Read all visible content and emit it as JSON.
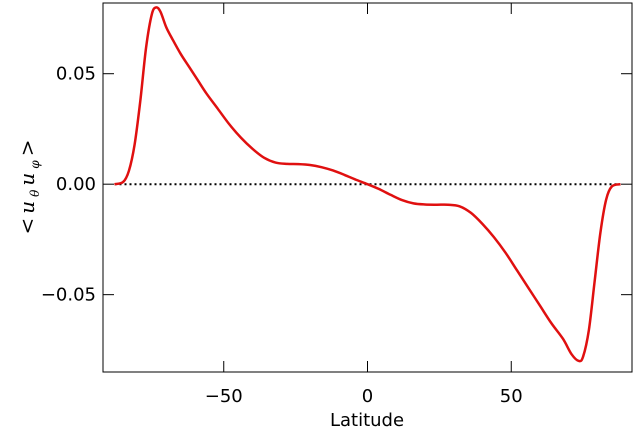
{
  "chart_data": {
    "type": "line",
    "xlabel": "Latitude",
    "ylabel": {
      "open": "<",
      "u1": "u",
      "sub1": "θ",
      "u2": "u",
      "sub2": "φ",
      "close": ">"
    },
    "xlim": [
      -92,
      92
    ],
    "ylim": [
      -0.085,
      0.082
    ],
    "xticks": [
      -50,
      0,
      50
    ],
    "xtick_labels": [
      "−50",
      "0",
      "50"
    ],
    "yticks": [
      -0.05,
      0.0,
      0.05
    ],
    "ytick_labels": [
      "−0.05",
      "0.00",
      "0.05"
    ],
    "grid": false,
    "series": [
      {
        "color": "#e01010",
        "style": "solid",
        "x": [
          -88,
          -85,
          -83,
          -81,
          -79,
          -77,
          -75,
          -73.5,
          -72,
          -70,
          -68,
          -65,
          -62,
          -59,
          -56,
          -52,
          -48,
          -44,
          -40,
          -36,
          -32,
          -28,
          -24,
          -20,
          -16,
          -12,
          -8,
          -4,
          0,
          4,
          8,
          12,
          16,
          20,
          24,
          28,
          32,
          36,
          40,
          44,
          48,
          52,
          56,
          60,
          64,
          68,
          71,
          73.5,
          75,
          77,
          79,
          81,
          83,
          85,
          88
        ],
        "y": [
          0.0,
          0.001,
          0.006,
          0.018,
          0.038,
          0.062,
          0.077,
          0.08,
          0.078,
          0.071,
          0.066,
          0.059,
          0.053,
          0.047,
          0.041,
          0.034,
          0.027,
          0.021,
          0.016,
          0.012,
          0.0098,
          0.0092,
          0.0091,
          0.0087,
          0.0077,
          0.0062,
          0.0042,
          0.002,
          0.0,
          -0.0022,
          -0.0048,
          -0.0072,
          -0.0087,
          -0.0092,
          -0.0093,
          -0.0093,
          -0.01,
          -0.013,
          -0.018,
          -0.024,
          -0.031,
          -0.039,
          -0.047,
          -0.055,
          -0.063,
          -0.07,
          -0.077,
          -0.08,
          -0.078,
          -0.066,
          -0.044,
          -0.022,
          -0.007,
          -0.001,
          0.0
        ]
      },
      {
        "color": "#000000",
        "style": "dotted",
        "x": [
          -88,
          88
        ],
        "y": [
          0.0,
          0.0
        ]
      }
    ]
  }
}
